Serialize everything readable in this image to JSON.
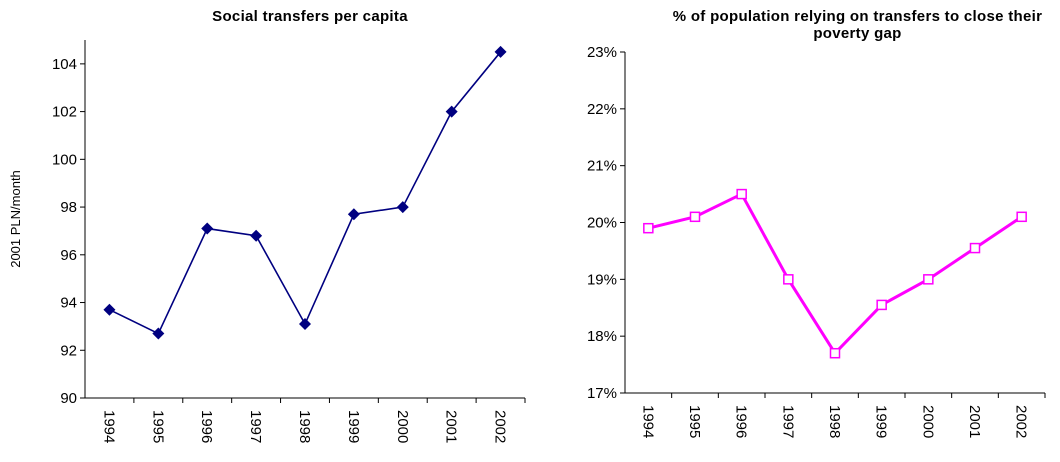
{
  "chart_data": [
    {
      "type": "line",
      "title": "Social transfers per capita",
      "y_label": "2001 PLN/month",
      "categories": [
        "1994",
        "1995",
        "1996",
        "1997",
        "1998",
        "1999",
        "2000",
        "2001",
        "2002"
      ],
      "series": [
        {
          "name": "Social transfers per capita",
          "color": "#000080",
          "marker": "diamond",
          "values": [
            93.7,
            92.7,
            97.1,
            96.8,
            93.1,
            97.7,
            98.0,
            102.0,
            104.5
          ]
        }
      ],
      "ylim": [
        90,
        105
      ],
      "yticks": [
        90,
        92,
        94,
        96,
        98,
        100,
        102,
        104
      ]
    },
    {
      "type": "line",
      "title": "% of population relying on transfers to close their poverty gap",
      "categories": [
        "1994",
        "1995",
        "1996",
        "1997",
        "1998",
        "1999",
        "2000",
        "2001",
        "2002"
      ],
      "series": [
        {
          "name": "% of population relying on transfers",
          "color": "#ff00ff",
          "marker": "square",
          "values": [
            19.9,
            20.1,
            20.5,
            19.0,
            17.7,
            18.55,
            19.0,
            19.55,
            20.1
          ]
        }
      ],
      "ylim": [
        17,
        23
      ],
      "yticks": [
        {
          "value": 17,
          "label": "17%"
        },
        {
          "value": 18,
          "label": "18%"
        },
        {
          "value": 19,
          "label": "19%"
        },
        {
          "value": 20,
          "label": "20%"
        },
        {
          "value": 21,
          "label": "21%"
        },
        {
          "value": 22,
          "label": "22%"
        },
        {
          "value": 23,
          "label": "23%"
        }
      ]
    }
  ]
}
